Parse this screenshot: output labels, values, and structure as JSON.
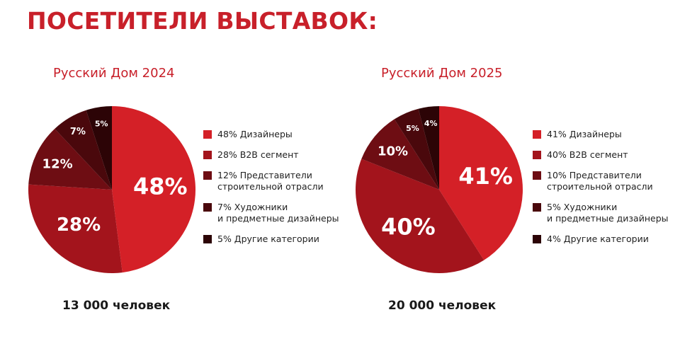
{
  "title": "ПОСЕТИТЕЛИ ВЫСТАВОК:",
  "chart_data": [
    {
      "type": "pie",
      "title": "Русский Дом 2024",
      "total_label": "13 000 человек",
      "slices": [
        {
          "value": 48,
          "label": "48%",
          "legend": "48% Дизайнеры",
          "color": "#d42027"
        },
        {
          "value": 28,
          "label": "28%",
          "legend": "28% B2B сегмент",
          "color": "#a3141c"
        },
        {
          "value": 12,
          "label": "12%",
          "legend": "12% Представители\nстроительной отрасли",
          "color": "#6e0d13"
        },
        {
          "value": 7,
          "label": "7%",
          "legend": "7% Художники\nи предметные дизайнеры",
          "color": "#4a080c"
        },
        {
          "value": 5,
          "label": "5%",
          "legend": "5% Другие категории",
          "color": "#2c0406"
        }
      ]
    },
    {
      "type": "pie",
      "title": "Русский Дом 2025",
      "total_label": "20 000 человек",
      "slices": [
        {
          "value": 41,
          "label": "41%",
          "legend": "41% Дизайнеры",
          "color": "#d42027"
        },
        {
          "value": 40,
          "label": "40%",
          "legend": "40% B2B сегмент",
          "color": "#a3141c"
        },
        {
          "value": 10,
          "label": "10%",
          "legend": "10% Представители\nстроительной отрасли",
          "color": "#6e0d13"
        },
        {
          "value": 5,
          "label": "5%",
          "legend": "5% Художники\nи предметные дизайнеры",
          "color": "#4a080c"
        },
        {
          "value": 4,
          "label": "4%",
          "legend": "4% Другие категории",
          "color": "#2c0406"
        }
      ]
    }
  ]
}
